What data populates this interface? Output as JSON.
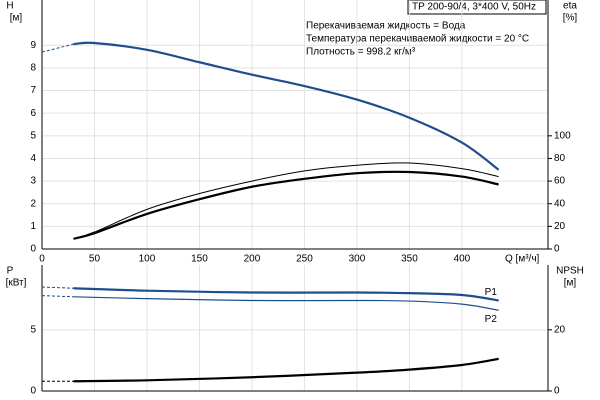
{
  "chart_data": [
    {
      "type": "line",
      "title": "TP 200-90/4, 3*400 V, 50Hz",
      "annotations": [
        "Перекачиваемая жидкость = Вода",
        "Температура перекачиваемой жидкости = 20 °C",
        "Плотность = 998.2 кг/м³"
      ],
      "ylabel": "H",
      "yunit": "[м]",
      "y2label": "eta",
      "y2unit": "[%]",
      "xlabel": "Q [м³/ч]",
      "x": [
        0,
        30,
        50,
        100,
        150,
        200,
        250,
        300,
        350,
        400,
        435
      ],
      "xlim": [
        0,
        482
      ],
      "xticks": [
        0,
        50,
        100,
        150,
        200,
        250,
        300,
        350,
        400
      ],
      "ylim": [
        0,
        11
      ],
      "yticks": [
        0,
        1,
        2,
        3,
        4,
        5,
        6,
        7,
        8,
        9
      ],
      "y2lim": [
        0,
        220
      ],
      "y2ticks": [
        0,
        20,
        40,
        60,
        80,
        100
      ],
      "grid": true,
      "series": [
        {
          "color": "#1f4e8c",
          "linewidth": 2.2,
          "values": [
            8.7,
            9.05,
            9.1,
            8.8,
            8.25,
            7.7,
            7.2,
            6.6,
            5.8,
            4.7,
            3.5
          ]
        },
        {
          "color": "#000000",
          "linewidth": 1,
          "axis": "y2",
          "values": [
            null,
            9,
            15,
            35,
            49,
            60,
            69,
            74,
            76,
            71,
            64
          ]
        },
        {
          "color": "#000000",
          "linewidth": 2.2,
          "axis": "y2",
          "values": [
            null,
            9,
            14,
            31,
            44,
            55,
            62,
            67,
            68,
            64,
            57
          ]
        }
      ]
    },
    {
      "type": "line",
      "ylabel": "P",
      "yunit": "[кВт]",
      "y2label": "NPSH",
      "y2unit": "[м]",
      "x": [
        0,
        30,
        100,
        200,
        300,
        350,
        400,
        435
      ],
      "xlim": [
        0,
        482
      ],
      "xticks": [
        0,
        50,
        100,
        150,
        200,
        250,
        300,
        350,
        400
      ],
      "ylim": [
        0,
        10.3
      ],
      "yticks": [
        0,
        5
      ],
      "y2lim": [
        0,
        41.2
      ],
      "y2ticks": [
        0,
        20
      ],
      "grid": true,
      "series": [
        {
          "name": "P1",
          "color": "#1f4e8c",
          "linewidth": 2.2,
          "values": [
            8.5,
            8.4,
            8.2,
            8.05,
            8.05,
            8.0,
            7.85,
            7.4
          ]
        },
        {
          "name": "P2",
          "color": "#1f4e8c",
          "linewidth": 1.2,
          "values": [
            7.8,
            7.7,
            7.55,
            7.4,
            7.4,
            7.35,
            7.1,
            6.6
          ]
        },
        {
          "color": "#000000",
          "linewidth": 2.2,
          "axis": "y2",
          "values": [
            3.2,
            3.2,
            3.5,
            4.5,
            6,
            7,
            8.5,
            10.5
          ]
        }
      ]
    }
  ]
}
